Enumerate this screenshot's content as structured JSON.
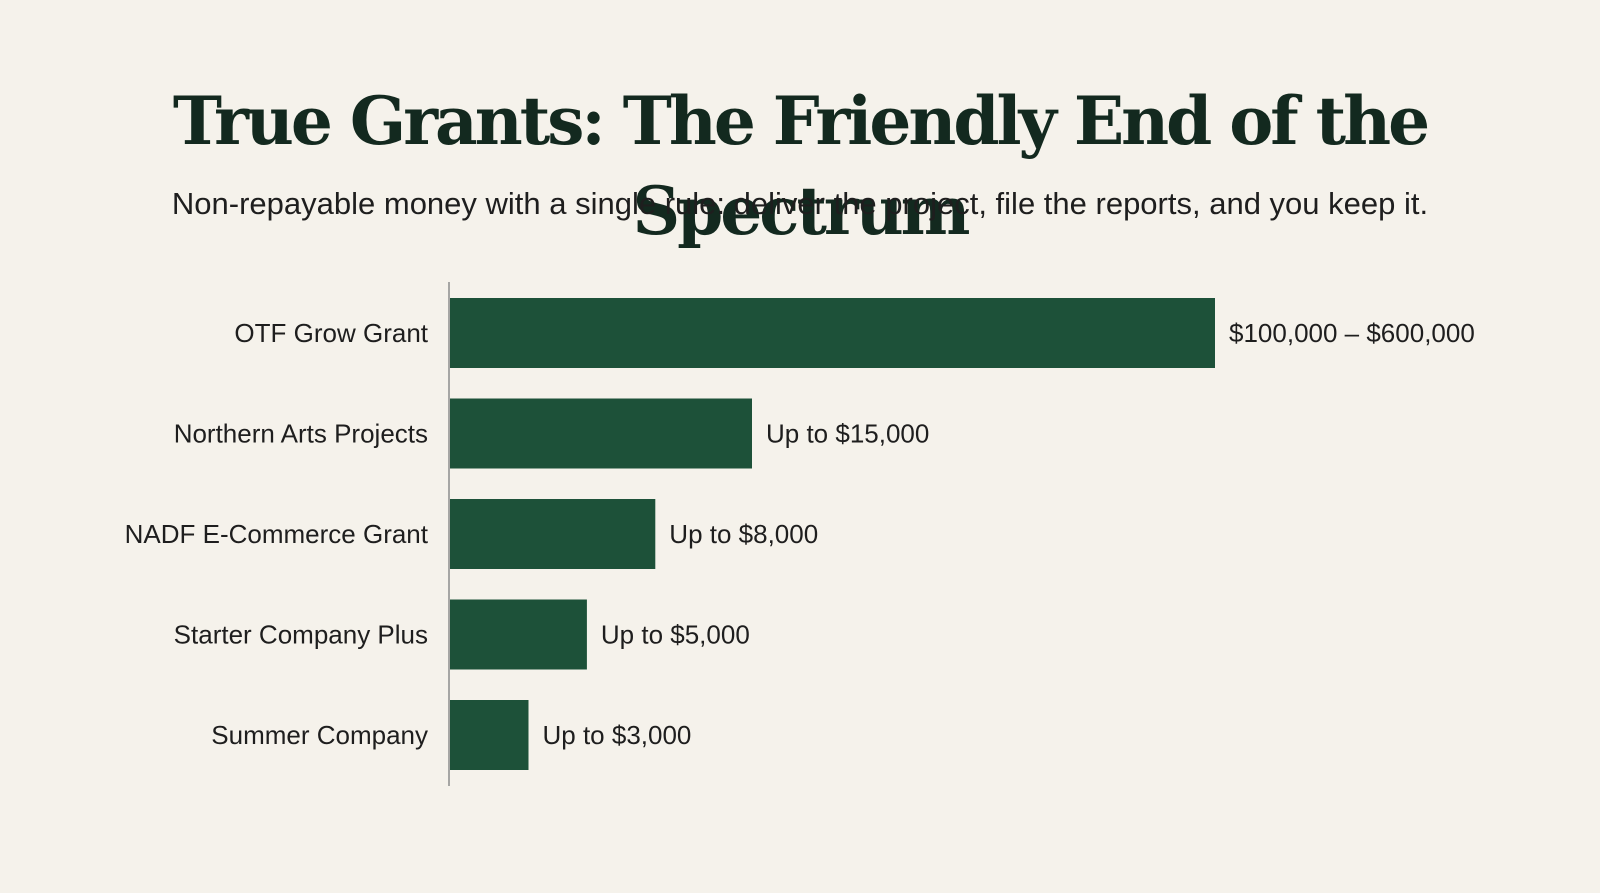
{
  "title": "True Grants: The Friendly End of the Spectrum",
  "subtitle": "Non-repayable money with a single rule: deliver the project, file the reports, and you keep it.",
  "colors": {
    "background": "#f5f2eb",
    "bar": "#1d5139",
    "axis": "#8c8c8c",
    "text": "#1e1e1e",
    "title": "#13291f"
  },
  "chart_data": {
    "type": "bar",
    "orientation": "horizontal",
    "title": "",
    "xlabel": "",
    "ylabel": "",
    "grid": false,
    "legend": "none",
    "categories": [
      "OTF Grow Grant",
      "Northern Arts Projects",
      "NADF E-Commerce Grant",
      "Starter Company Plus",
      "Summer Company"
    ],
    "values": [
      38000,
      15000,
      10200,
      6800,
      3900
    ],
    "data_labels": [
      "$100,000 – $600,000",
      "Up to $15,000",
      "Up to $8,000",
      "Up to $5,000",
      "Up to $3,000"
    ],
    "xlim": [
      0,
      38000
    ]
  }
}
